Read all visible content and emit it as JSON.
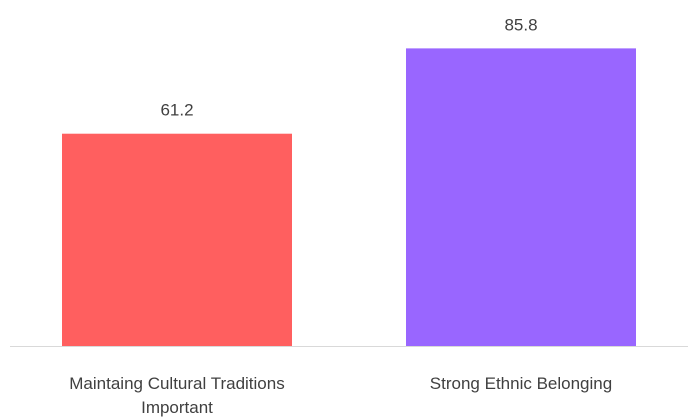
{
  "chart_data": {
    "type": "bar",
    "categories": [
      [
        "Maintaing Cultural Traditions",
        "Important"
      ],
      [
        "Strong Ethnic Belonging"
      ]
    ],
    "values": [
      61.2,
      85.8
    ],
    "value_labels": [
      "61.2",
      "85.8"
    ],
    "colors": [
      "#ff5f5f",
      "#9966ff"
    ],
    "axis_color": "#d9d9d9",
    "text_color": "#404040",
    "ylim": [
      0,
      96
    ],
    "grid": false,
    "legend": "none"
  }
}
